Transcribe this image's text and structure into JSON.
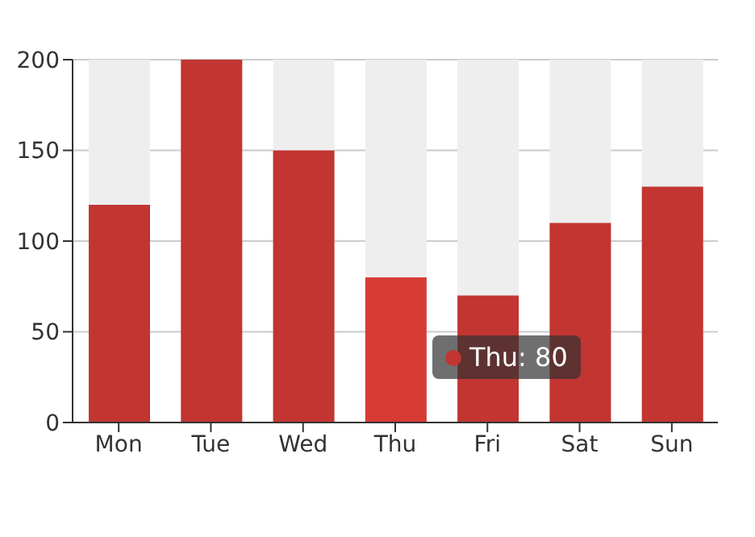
{
  "chart_data": {
    "type": "bar",
    "categories": [
      "Mon",
      "Tue",
      "Wed",
      "Thu",
      "Fri",
      "Sat",
      "Sun"
    ],
    "values": [
      120,
      200,
      150,
      80,
      70,
      110,
      130
    ],
    "colors": [
      "#c23531",
      "#c23531",
      "#c23531",
      "#d63c34",
      "#c23531",
      "#c23531",
      "#c23531"
    ],
    "ylim": [
      0,
      200
    ],
    "yticks": [
      0,
      50,
      100,
      150,
      200
    ],
    "grid": "y",
    "annotations": [
      "Thu: 80"
    ]
  }
}
